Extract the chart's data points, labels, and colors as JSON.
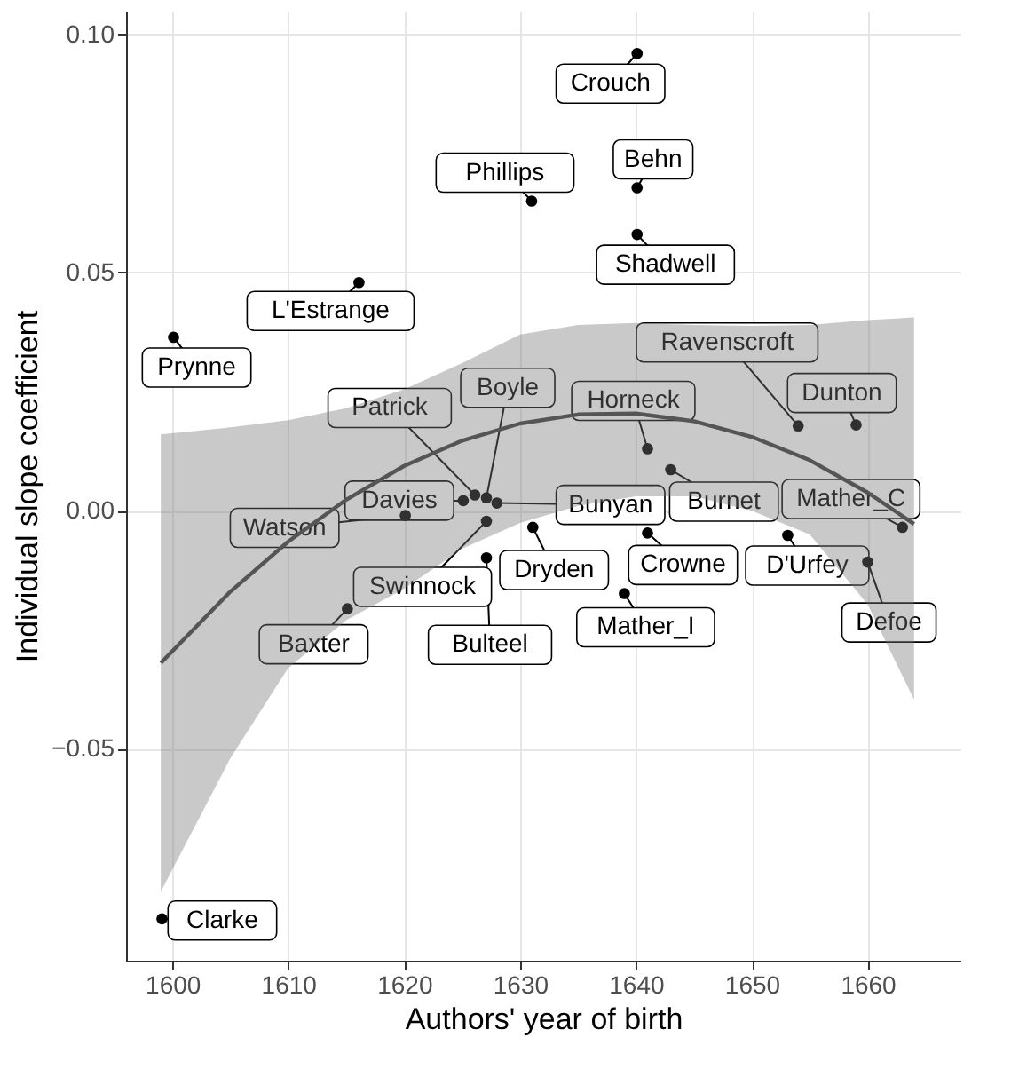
{
  "chart_data": {
    "type": "scatter",
    "xlabel": "Authors' year of birth",
    "ylabel": "Individual slope coefficient",
    "xlim": [
      1596,
      1668
    ],
    "ylim": [
      -0.0945,
      0.105
    ],
    "xticks": [
      1600,
      1610,
      1620,
      1630,
      1640,
      1650,
      1660
    ],
    "yticks": [
      {
        "value": -0.05,
        "label": "−0.05"
      },
      {
        "value": 0,
        "label": "0.00"
      },
      {
        "value": 0.05,
        "label": "0.05"
      },
      {
        "value": 0.1,
        "label": "0.10"
      }
    ],
    "grid": true,
    "marker": "circle",
    "series": [
      {
        "type": "scatter",
        "color": "#000000",
        "x": [
          1600.1,
          1616.1,
          1631.0,
          1640.1,
          1640.1,
          1640.1,
          1654.0,
          1659.0,
          1641.0,
          1643.0,
          1628.0,
          1663.0,
          1641.0,
          1653.1,
          1660.0,
          1631.1,
          1639.0,
          1627.1,
          1627.1,
          1620.1,
          1615.1,
          1599.1,
          1625.1,
          1626.1,
          1627.1
        ],
        "values": [
          0.0364,
          0.0479,
          0.065,
          0.096,
          0.0678,
          0.058,
          0.0178,
          0.018,
          0.013,
          0.0086,
          0.0016,
          -0.0035,
          -0.0047,
          -0.0052,
          -0.0108,
          -0.0035,
          -0.0174,
          -0.0099,
          -0.0022,
          -0.001,
          -0.0206,
          -0.0857,
          0.0021,
          0.0033,
          0.0027
        ]
      },
      {
        "type": "line",
        "marker": "none",
        "color": "#555555",
        "x": [
          1599,
          1605,
          1610,
          1615,
          1620,
          1625,
          1630,
          1635,
          1640,
          1645,
          1650,
          1655,
          1660,
          1664
        ],
        "values": [
          -0.032,
          -0.017,
          -0.0065,
          0.0023,
          0.0094,
          0.0147,
          0.0183,
          0.0202,
          0.0204,
          0.0188,
          0.0155,
          0.0106,
          0.0038,
          -0.0028
        ],
        "lower": [
          -0.08,
          -0.052,
          -0.033,
          -0.023,
          -0.0164,
          -0.008,
          -0.0026,
          0.001,
          0.003,
          0.003,
          0,
          -0.005,
          -0.0197,
          -0.0397
        ],
        "upper": [
          0.016,
          0.0175,
          0.019,
          0.0215,
          0.0255,
          0.031,
          0.037,
          0.039,
          0.0394,
          0.039,
          0.0388,
          0.039,
          0.04,
          0.0406
        ]
      }
    ],
    "annotations": [
      {
        "text": "Prynne",
        "x": 1600.1,
        "y": 0.0364
      },
      {
        "text": "L'Estrange",
        "x": 1616.1,
        "y": 0.0479
      },
      {
        "text": "Phillips",
        "x": 1631.0,
        "y": 0.065
      },
      {
        "text": "Crouch",
        "x": 1640.1,
        "y": 0.096
      },
      {
        "text": "Behn",
        "x": 1640.1,
        "y": 0.0678
      },
      {
        "text": "Shadwell",
        "x": 1640.1,
        "y": 0.058
      },
      {
        "text": "Ravenscroft",
        "x": 1654.0,
        "y": 0.0178
      },
      {
        "text": "Dunton",
        "x": 1659.0,
        "y": 0.018
      },
      {
        "text": "Horneck",
        "x": 1641.0,
        "y": 0.013
      },
      {
        "text": "Burnet",
        "x": 1643.0,
        "y": 0.0086
      },
      {
        "text": "Bunyan",
        "x": 1628.0,
        "y": 0.0016
      },
      {
        "text": "Mather_C",
        "x": 1663.0,
        "y": -0.0035
      },
      {
        "text": "Crowne",
        "x": 1641.0,
        "y": -0.0047
      },
      {
        "text": "D'Urfey",
        "x": 1653.1,
        "y": -0.0052
      },
      {
        "text": "Defoe",
        "x": 1660.0,
        "y": -0.0108
      },
      {
        "text": "Dryden",
        "x": 1631.1,
        "y": -0.0035
      },
      {
        "text": "Mather_I",
        "x": 1639.0,
        "y": -0.0174
      },
      {
        "text": "Bulteel",
        "x": 1627.1,
        "y": -0.0099
      },
      {
        "text": "Swinnock",
        "x": 1627.1,
        "y": -0.0022
      },
      {
        "text": "Watson",
        "x": 1620.1,
        "y": -0.001
      },
      {
        "text": "Baxter",
        "x": 1615.1,
        "y": -0.0206
      },
      {
        "text": "Clarke",
        "x": 1599.1,
        "y": -0.0857
      },
      {
        "text": "Davies",
        "x": 1625.1,
        "y": 0.0021
      },
      {
        "text": "Patrick",
        "x": 1626.1,
        "y": 0.0033
      },
      {
        "text": "Boyle",
        "x": 1627.1,
        "y": 0.0027
      }
    ]
  }
}
